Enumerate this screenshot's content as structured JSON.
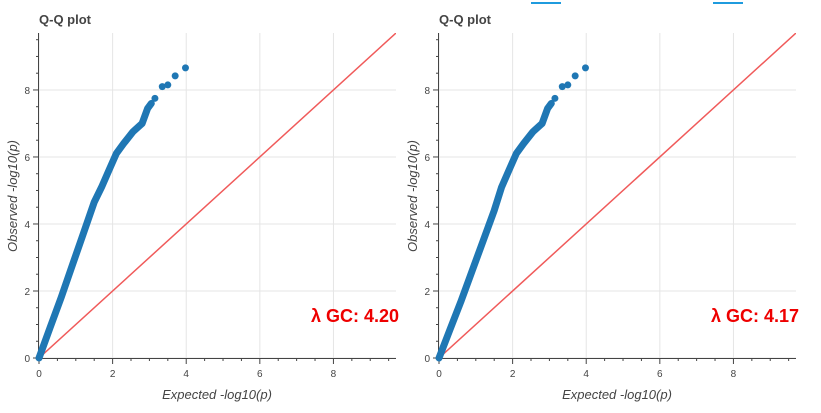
{
  "chart_data": [
    {
      "type": "scatter",
      "title": "Q-Q plot",
      "xlabel": "Expected -log10(p)",
      "ylabel": "Observed -log10(p)",
      "xlim": [
        0,
        9.7
      ],
      "ylim": [
        0,
        9.7
      ],
      "xticks": [
        "0",
        "2",
        "4",
        "6",
        "8"
      ],
      "yticks": [
        "0",
        "2",
        "4",
        "6",
        "8"
      ],
      "grid": true,
      "annotation": "λ GC: 4.20",
      "colors": {
        "points": "#1f77b4",
        "reference_line": "#f05a5a",
        "annotation": "#ee0000"
      },
      "reference_line": {
        "x": [
          0,
          9.7
        ],
        "y": [
          0,
          9.7
        ]
      },
      "points_curve": {
        "x": [
          0,
          0.3,
          0.6,
          0.9,
          1.2,
          1.5,
          1.7,
          1.9,
          2.1,
          2.3,
          2.55,
          2.8,
          2.95,
          3.05
        ],
        "y": [
          0,
          0.9,
          1.8,
          2.75,
          3.7,
          4.65,
          5.1,
          5.6,
          6.1,
          6.4,
          6.75,
          7.0,
          7.45,
          7.6
        ]
      },
      "points_tail": {
        "x": [
          3.15,
          3.35,
          3.5,
          3.7,
          3.98
        ],
        "y": [
          7.75,
          8.1,
          8.15,
          8.42,
          8.66
        ]
      }
    },
    {
      "type": "scatter",
      "title": "Q-Q plot",
      "xlabel": "Expected -log10(p)",
      "ylabel": "Observed -log10(p)",
      "xlim": [
        0,
        9.7
      ],
      "ylim": [
        0,
        9.7
      ],
      "xticks": [
        "0",
        "2",
        "4",
        "6",
        "8"
      ],
      "yticks": [
        "0",
        "2",
        "4",
        "6",
        "8"
      ],
      "grid": true,
      "annotation": "λ GC: 4.17",
      "colors": {
        "points": "#1f77b4",
        "reference_line": "#f05a5a",
        "annotation": "#ee0000"
      },
      "reference_line": {
        "x": [
          0,
          9.7
        ],
        "y": [
          0,
          9.7
        ]
      },
      "points_curve": {
        "x": [
          0,
          0.3,
          0.6,
          0.9,
          1.2,
          1.5,
          1.7,
          1.9,
          2.1,
          2.3,
          2.55,
          2.8,
          2.95,
          3.05
        ],
        "y": [
          0,
          0.85,
          1.7,
          2.6,
          3.5,
          4.4,
          5.1,
          5.6,
          6.1,
          6.4,
          6.75,
          7.0,
          7.45,
          7.6
        ]
      },
      "points_tail": {
        "x": [
          3.15,
          3.35,
          3.5,
          3.7,
          3.98
        ],
        "y": [
          7.75,
          8.1,
          8.15,
          8.42,
          8.66
        ]
      }
    }
  ]
}
